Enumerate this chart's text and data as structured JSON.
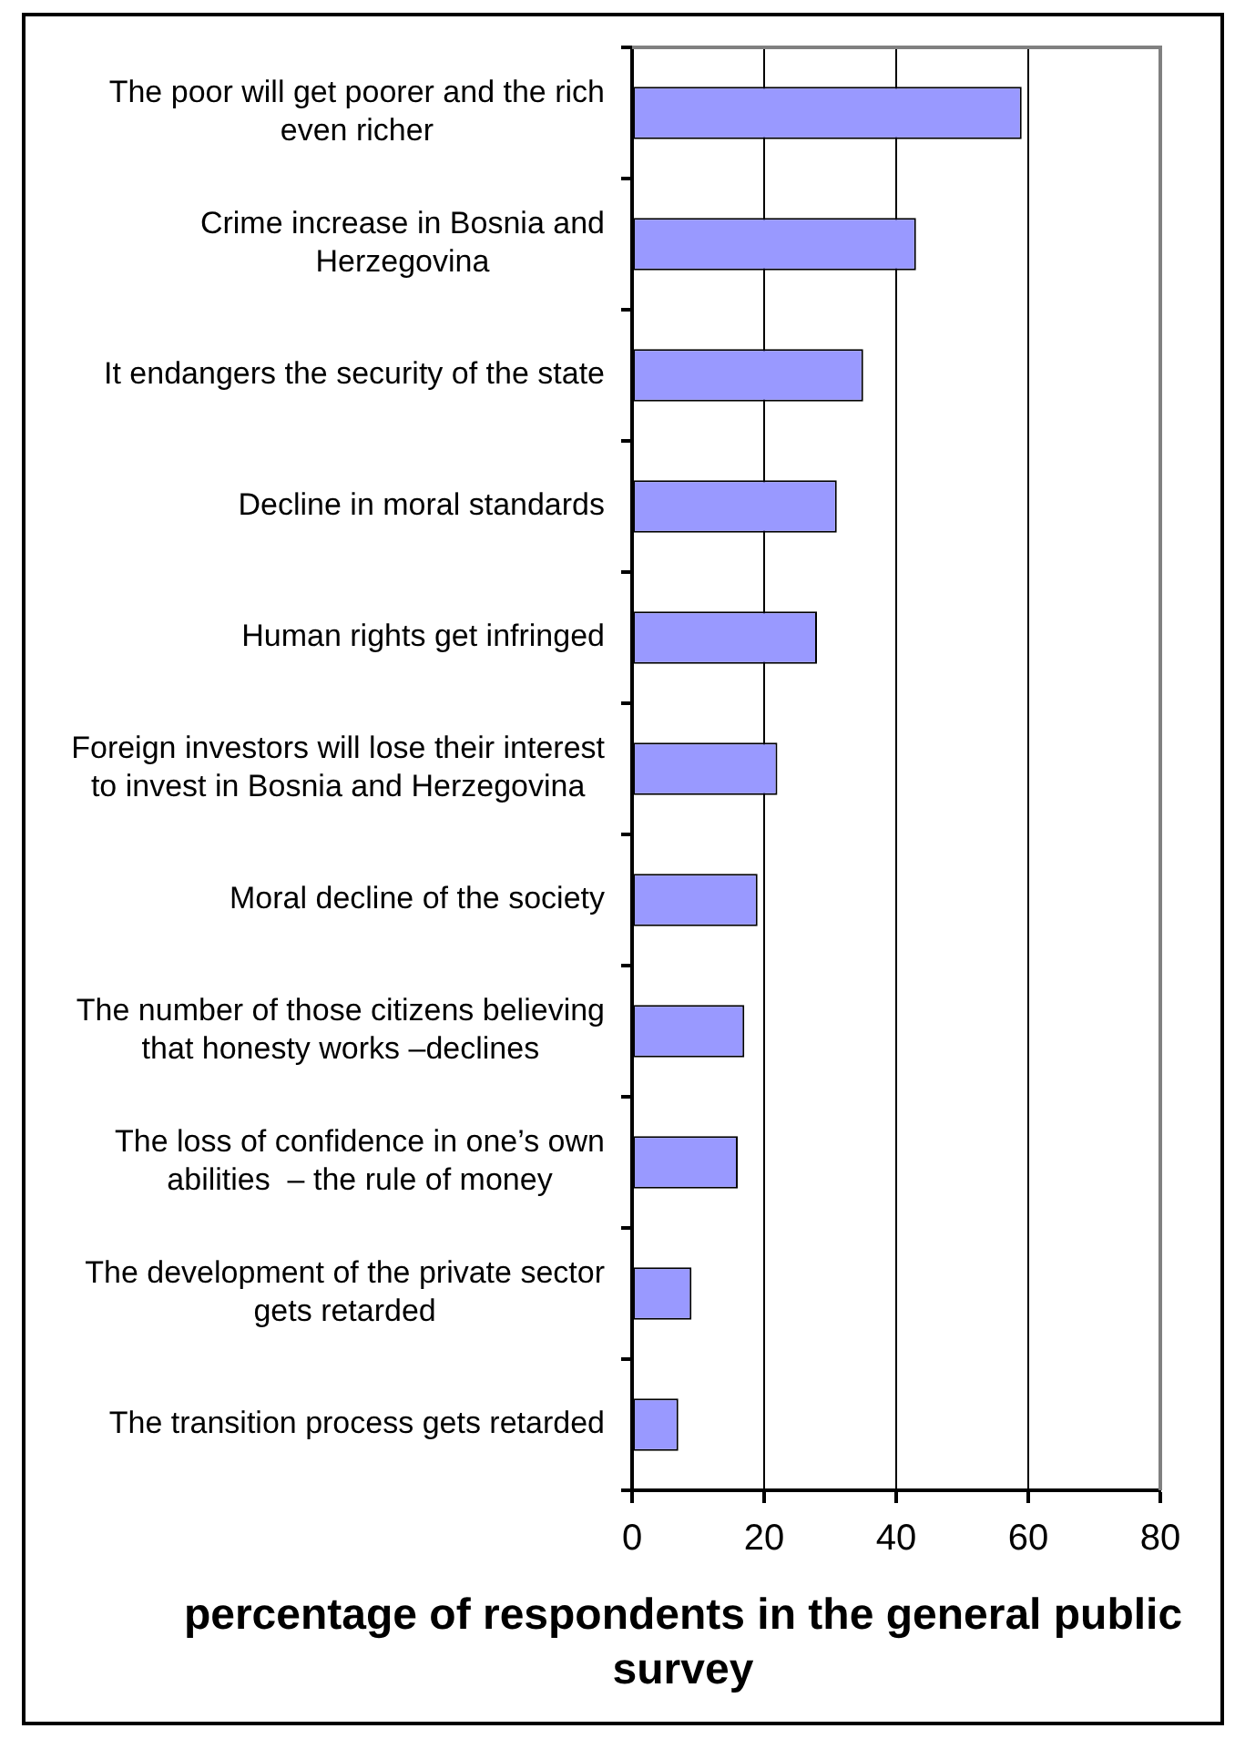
{
  "chart_data": {
    "type": "bar",
    "orientation": "horizontal",
    "categories": [
      "The poor will get poorer and the rich even richer",
      "Crime increase in Bosnia and Herzegovina",
      "It endangers the security of the state",
      "Decline in moral standards",
      "Human rights get infringed",
      "Foreign investors will lose their interest to invest in Bosnia and Herzegovina",
      "Moral decline of the society",
      "The number of those citizens believing that honesty works –declines",
      "The loss of confidence in one’s own abilities  – the rule of money",
      "The development of the private sector gets retarded",
      "The transition process gets retarded"
    ],
    "values": [
      59,
      43,
      35,
      31,
      28,
      22,
      19,
      17,
      16,
      9,
      7
    ],
    "color": "#9999ff",
    "xlabel": "percentage of respondents in the general public survey",
    "xlim": [
      0,
      80
    ],
    "xticks": [
      0,
      20,
      40,
      60,
      80
    ],
    "grid": "x"
  }
}
